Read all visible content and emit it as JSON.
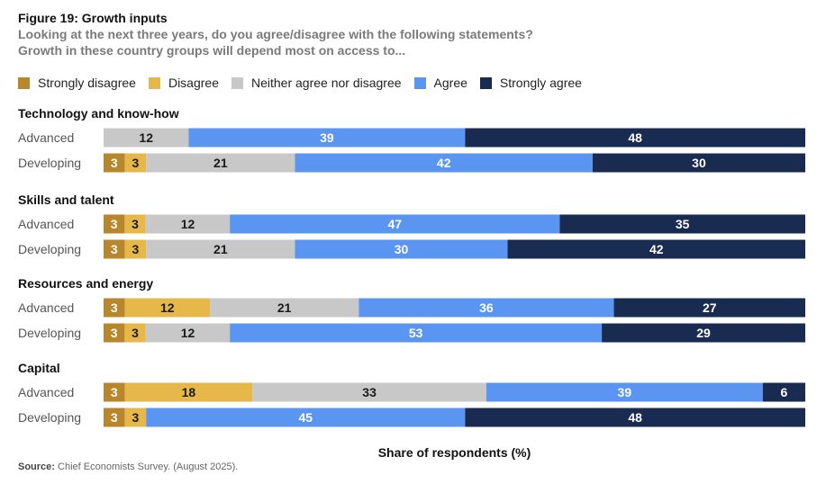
{
  "header": {
    "title": "Figure 19: Growth inputs",
    "subtitle_line1": "Looking at the next three years, do you agree/disagree with the following statements?",
    "subtitle_line2": "Growth in these country groups will depend most on access to..."
  },
  "source": {
    "label": "Source:",
    "text": "Chief Economists Survey. (August 2025)."
  },
  "colors": {
    "strongly_disagree": "#b8862b",
    "disagree": "#e6b84a",
    "neither": "#c8c8c8",
    "agree": "#5b95f2",
    "strongly_agree": "#1a2b52"
  },
  "chart_data": {
    "type": "bar",
    "orientation": "horizontal",
    "stacked": true,
    "xlabel": "Share of respondents (%)",
    "xlim": [
      0,
      100
    ],
    "grid": false,
    "legend_position": "top",
    "series": [
      {
        "key": "strongly_disagree",
        "name": "Strongly disagree"
      },
      {
        "key": "disagree",
        "name": "Disagree"
      },
      {
        "key": "neither",
        "name": "Neither agree nor disagree"
      },
      {
        "key": "agree",
        "name": "Agree"
      },
      {
        "key": "strongly_agree",
        "name": "Strongly agree"
      }
    ],
    "groups": [
      {
        "name": "Technology and know-how",
        "rows": [
          {
            "label": "Advanced",
            "values": [
              0,
              0,
              12,
              39,
              48
            ]
          },
          {
            "label": "Developing",
            "values": [
              3,
              3,
              21,
              42,
              30
            ]
          }
        ]
      },
      {
        "name": "Skills and talent",
        "rows": [
          {
            "label": "Advanced",
            "values": [
              3,
              3,
              12,
              47,
              35
            ]
          },
          {
            "label": "Developing",
            "values": [
              3,
              3,
              21,
              30,
              42
            ]
          }
        ]
      },
      {
        "name": "Resources and energy",
        "rows": [
          {
            "label": "Advanced",
            "values": [
              3,
              12,
              21,
              36,
              27
            ]
          },
          {
            "label": "Developing",
            "values": [
              3,
              3,
              12,
              53,
              29
            ]
          }
        ]
      },
      {
        "name": "Capital",
        "rows": [
          {
            "label": "Advanced",
            "values": [
              3,
              18,
              33,
              39,
              6
            ]
          },
          {
            "label": "Developing",
            "values": [
              3,
              3,
              0,
              45,
              48
            ]
          }
        ]
      }
    ]
  }
}
